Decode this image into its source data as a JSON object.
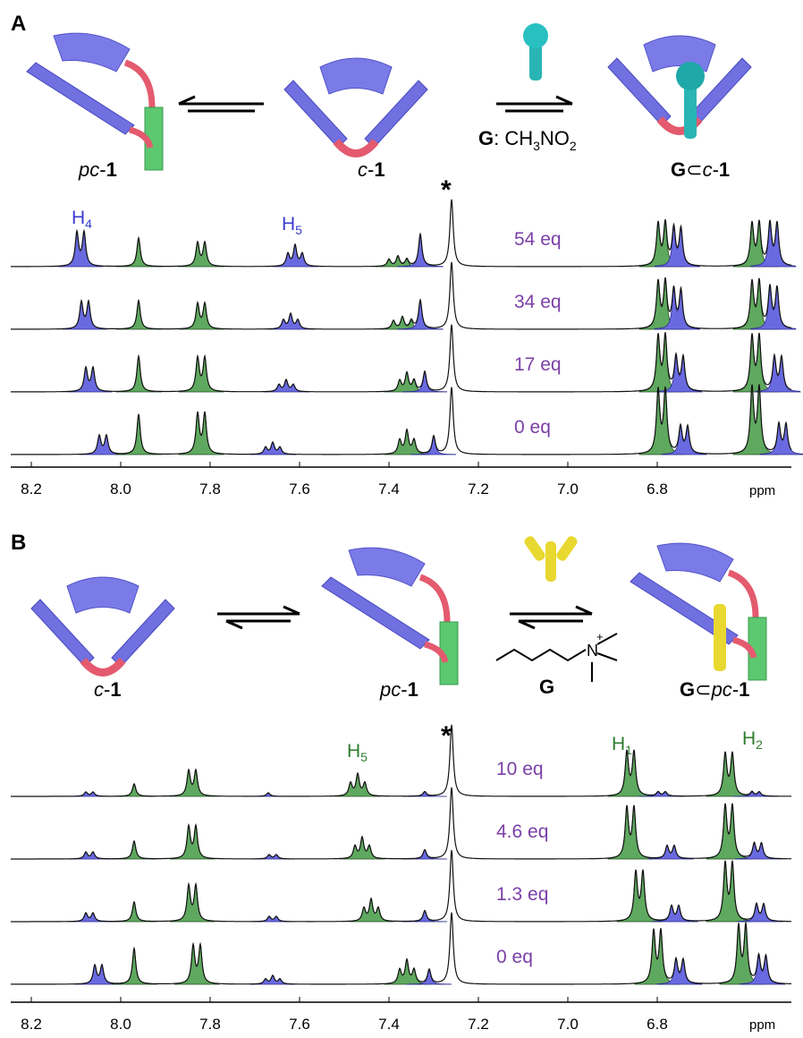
{
  "panels": [
    {
      "label": "A",
      "species": [
        [
          "pc",
          "-",
          "1"
        ],
        [
          "c",
          "-",
          "1"
        ],
        [
          "G",
          "⊂",
          "c",
          "-",
          "1"
        ]
      ],
      "guest": [
        "G",
        ": CH",
        "3",
        "NO",
        "2"
      ],
      "peak_labels": [
        [
          "H",
          "4"
        ],
        [
          "H",
          "5"
        ]
      ],
      "solvent_mark": "*",
      "spectra_labels": [
        "54 eq",
        "34 eq",
        "17 eq",
        "0 eq"
      ],
      "axis_ticks": [
        "8.2",
        "8.0",
        "7.8",
        "7.6",
        "7.4",
        "7.2",
        "7.0",
        "6.8"
      ],
      "unit": "ppm"
    },
    {
      "label": "B",
      "species": [
        [
          "c",
          "-",
          "1"
        ],
        [
          "pc",
          "-",
          "1"
        ],
        [
          "G",
          "⊂",
          "pc",
          "-",
          "1"
        ]
      ],
      "guest": "G",
      "guest_atom": "N",
      "guest_charge": "+",
      "peak_labels": [
        [
          "H",
          "5"
        ],
        [
          "H",
          "1"
        ],
        [
          "H",
          "2"
        ]
      ],
      "solvent_mark": "*",
      "spectra_labels": [
        "10 eq",
        "4.6 eq",
        "1.3 eq",
        "0 eq"
      ],
      "axis_ticks": [
        "8.2",
        "8.0",
        "7.8",
        "7.6",
        "7.4",
        "7.2",
        "7.0",
        "6.8"
      ],
      "unit": "ppm"
    }
  ]
}
